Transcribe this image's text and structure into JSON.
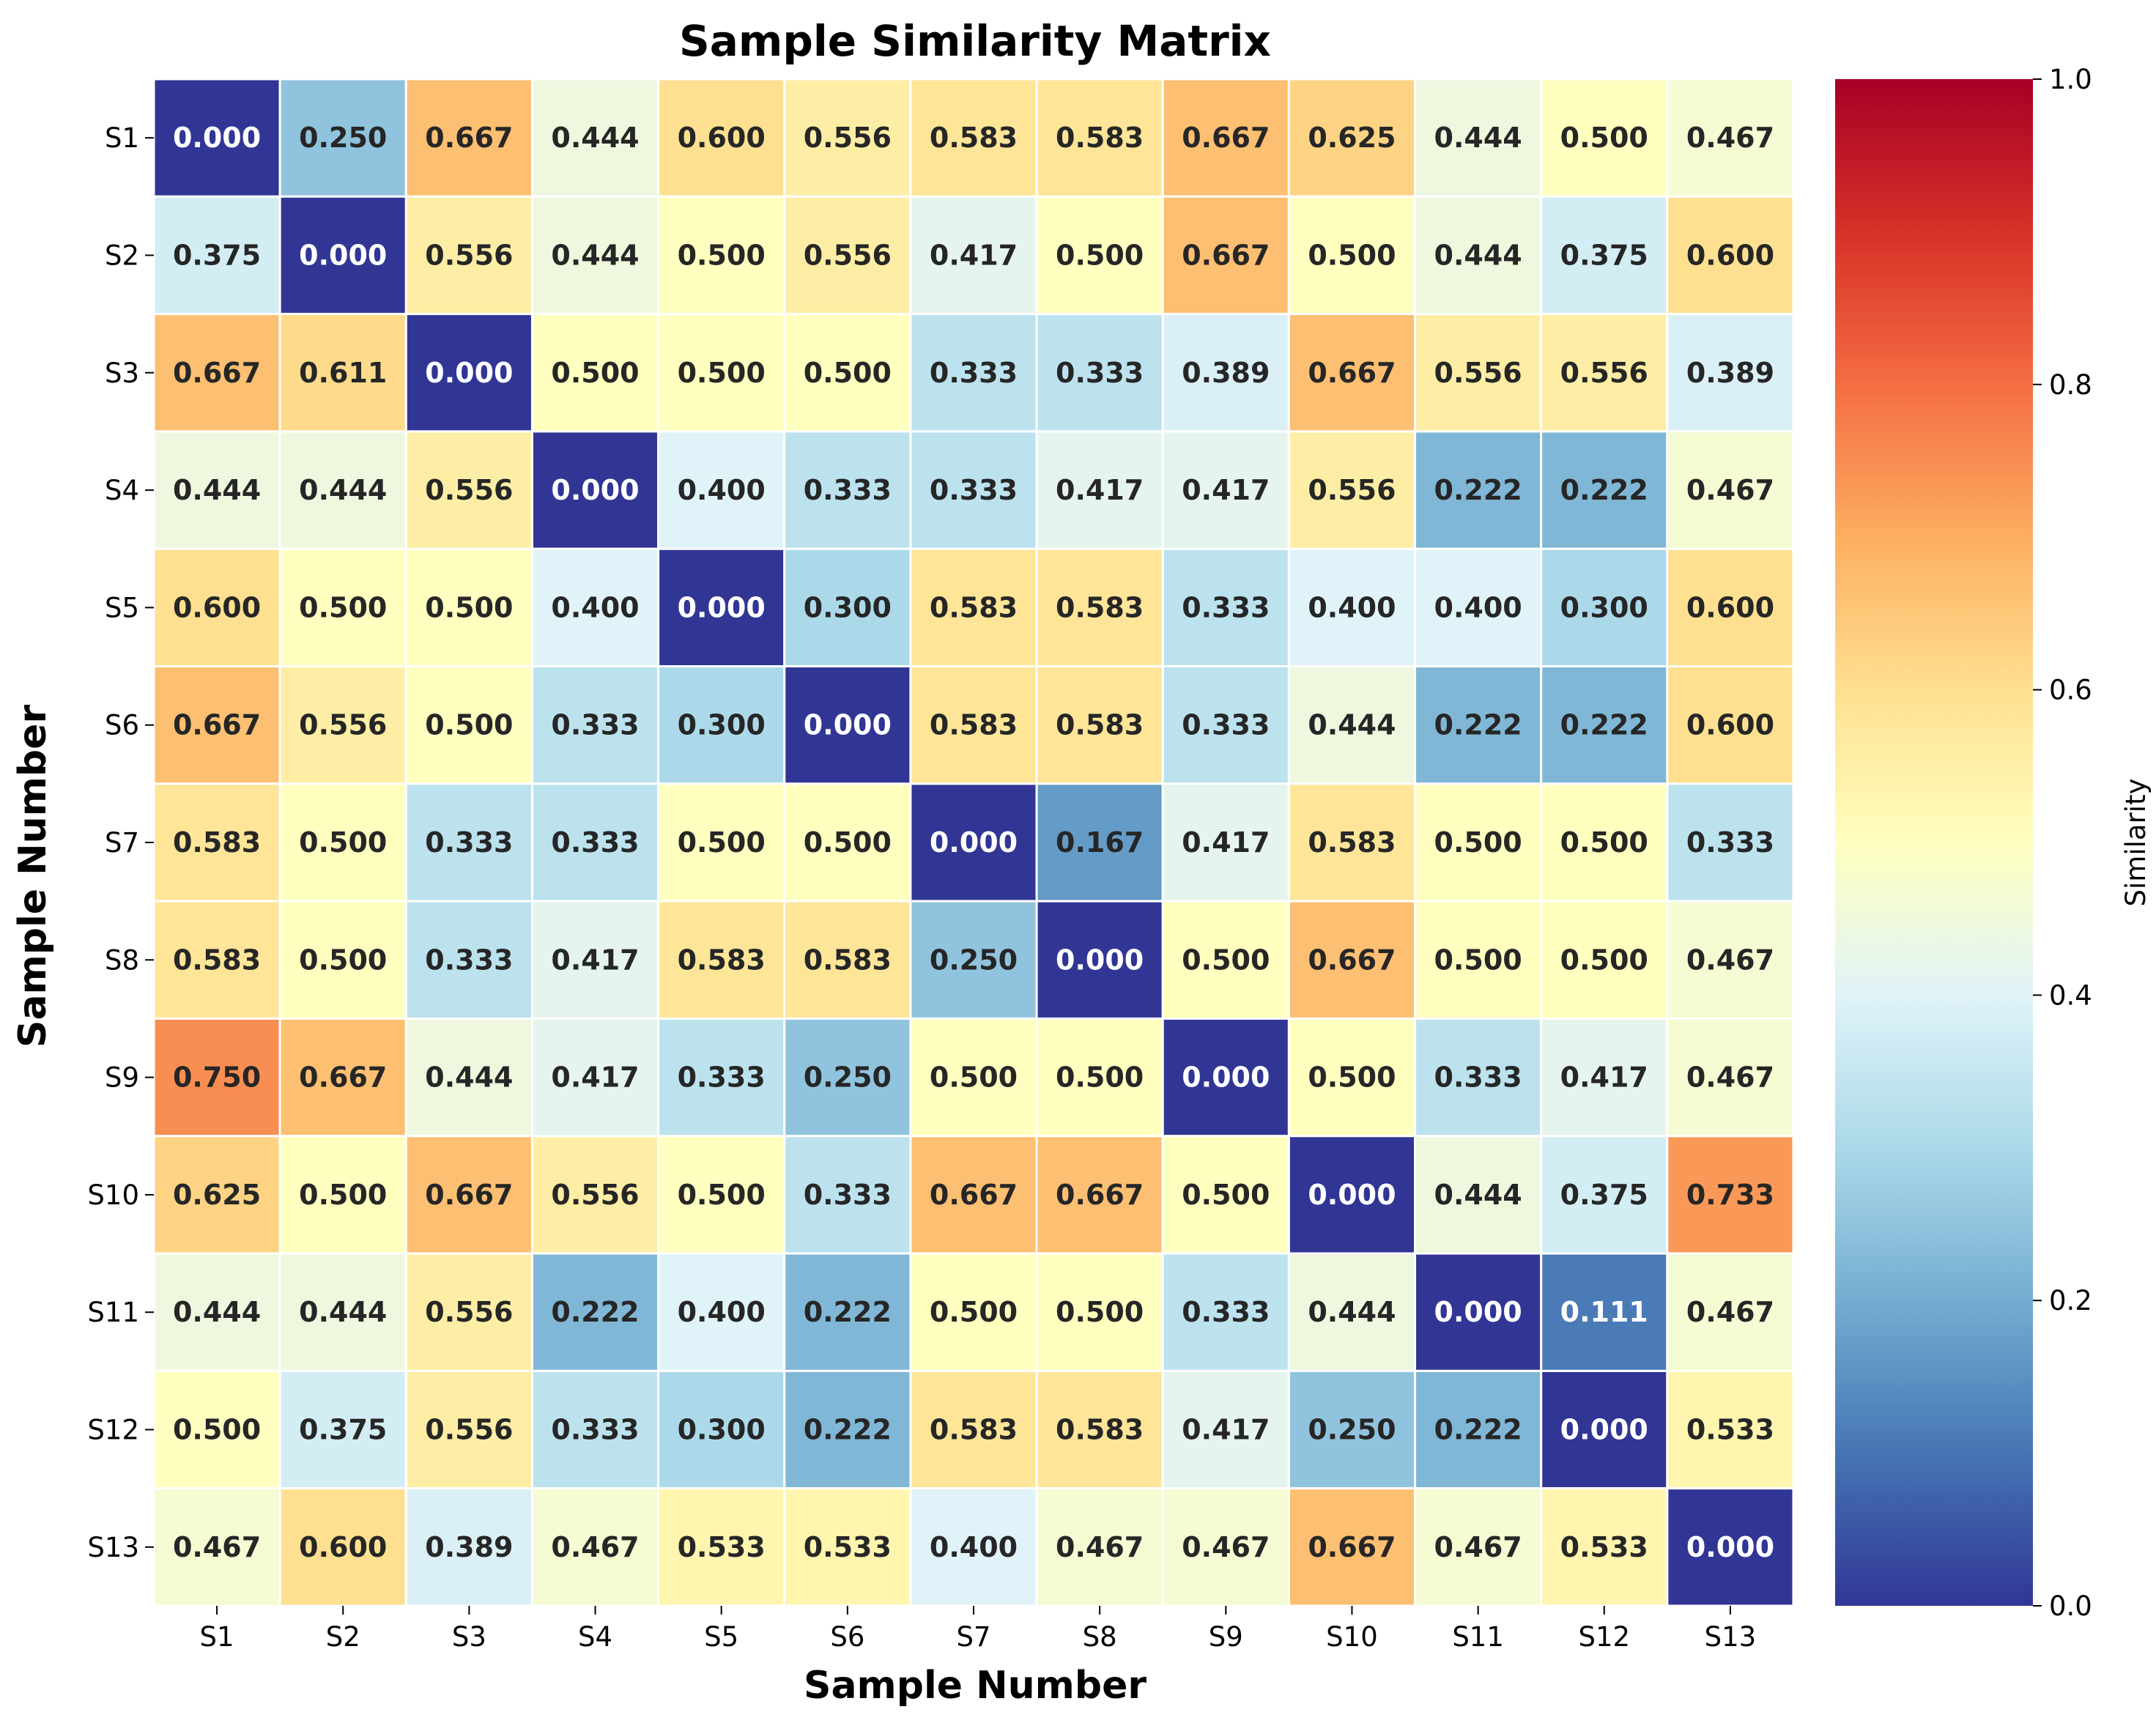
{
  "chart_data": {
    "type": "heatmap",
    "title": "Sample Similarity Matrix",
    "xlabel": "Sample Number",
    "ylabel": "Sample Number",
    "x_categories": [
      "S1",
      "S2",
      "S3",
      "S4",
      "S5",
      "S6",
      "S7",
      "S8",
      "S9",
      "S10",
      "S11",
      "S12",
      "S13"
    ],
    "y_categories": [
      "S1",
      "S2",
      "S3",
      "S4",
      "S5",
      "S6",
      "S7",
      "S8",
      "S9",
      "S10",
      "S11",
      "S12",
      "S13"
    ],
    "values": [
      [
        0.0,
        0.25,
        0.667,
        0.444,
        0.6,
        0.556,
        0.583,
        0.583,
        0.667,
        0.625,
        0.444,
        0.5,
        0.467
      ],
      [
        0.375,
        0.0,
        0.556,
        0.444,
        0.5,
        0.556,
        0.417,
        0.5,
        0.667,
        0.5,
        0.444,
        0.375,
        0.6
      ],
      [
        0.667,
        0.611,
        0.0,
        0.5,
        0.5,
        0.5,
        0.333,
        0.333,
        0.389,
        0.667,
        0.556,
        0.556,
        0.389
      ],
      [
        0.444,
        0.444,
        0.556,
        0.0,
        0.4,
        0.333,
        0.333,
        0.417,
        0.417,
        0.556,
        0.222,
        0.222,
        0.467
      ],
      [
        0.6,
        0.5,
        0.5,
        0.4,
        0.0,
        0.3,
        0.583,
        0.583,
        0.333,
        0.4,
        0.4,
        0.3,
        0.6
      ],
      [
        0.667,
        0.556,
        0.5,
        0.333,
        0.3,
        0.0,
        0.583,
        0.583,
        0.333,
        0.444,
        0.222,
        0.222,
        0.6
      ],
      [
        0.583,
        0.5,
        0.333,
        0.333,
        0.5,
        0.5,
        0.0,
        0.167,
        0.417,
        0.583,
        0.5,
        0.5,
        0.333
      ],
      [
        0.583,
        0.5,
        0.333,
        0.417,
        0.583,
        0.583,
        0.25,
        0.0,
        0.5,
        0.667,
        0.5,
        0.5,
        0.467
      ],
      [
        0.75,
        0.667,
        0.444,
        0.417,
        0.333,
        0.25,
        0.5,
        0.5,
        0.0,
        0.5,
        0.333,
        0.417,
        0.467
      ],
      [
        0.625,
        0.5,
        0.667,
        0.556,
        0.5,
        0.333,
        0.667,
        0.667,
        0.5,
        0.0,
        0.444,
        0.375,
        0.733
      ],
      [
        0.444,
        0.444,
        0.556,
        0.222,
        0.4,
        0.222,
        0.5,
        0.5,
        0.333,
        0.444,
        0.0,
        0.111,
        0.467
      ],
      [
        0.5,
        0.375,
        0.556,
        0.333,
        0.3,
        0.222,
        0.583,
        0.583,
        0.417,
        0.25,
        0.222,
        0.0,
        0.533
      ],
      [
        0.467,
        0.6,
        0.389,
        0.467,
        0.533,
        0.533,
        0.4,
        0.467,
        0.467,
        0.667,
        0.467,
        0.533,
        0.0
      ]
    ],
    "value_format": "3 decimals",
    "colormap": "RdYlBu_r",
    "colormap_stops": [
      "#313695",
      "#4575b4",
      "#74add1",
      "#abd9e9",
      "#e0f3f8",
      "#ffffbf",
      "#fee090",
      "#fdae61",
      "#f46d43",
      "#d73027",
      "#a50026"
    ],
    "vmin": 0.0,
    "vmax": 1.0,
    "colorbar": {
      "label": "Similarity",
      "ticks": [
        0.0,
        0.2,
        0.4,
        0.6,
        0.8,
        1.0
      ],
      "tick_labels": [
        "0.0",
        "0.2",
        "0.4",
        "0.6",
        "0.8",
        "1.0"
      ]
    },
    "cell_border_color": "#ffffff",
    "grid": false,
    "legend": "colorbar-right"
  }
}
